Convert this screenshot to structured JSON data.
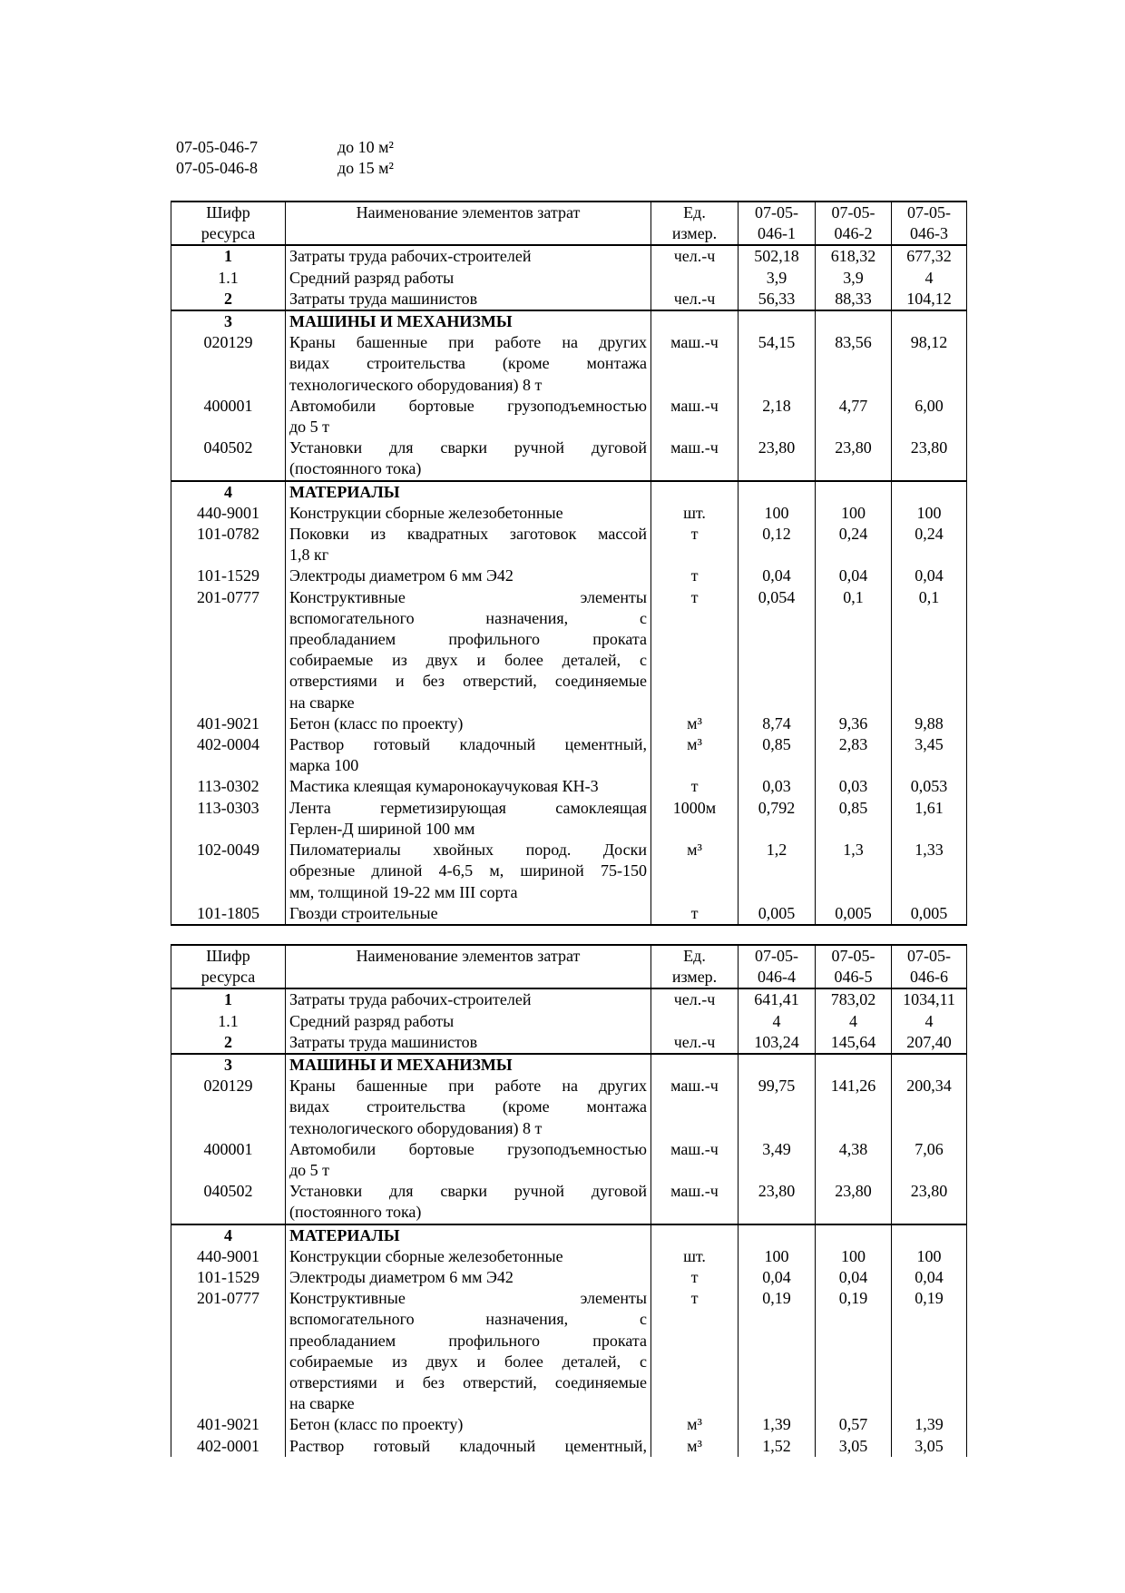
{
  "intro": [
    {
      "code": "07-05-046-7",
      "desc": "до 10 м²"
    },
    {
      "code": "07-05-046-8",
      "desc": "до 15 м²"
    }
  ],
  "tables": [
    {
      "header": {
        "code": [
          "Шифр",
          "ресурса"
        ],
        "name": "Наименование элементов затрат",
        "unit": [
          "Ед.",
          "измер."
        ],
        "cols": [
          [
            "07-05-",
            "046-1"
          ],
          [
            "07-05-",
            "046-2"
          ],
          [
            "07-05-",
            "046-3"
          ]
        ]
      },
      "groups": [
        [
          {
            "code": "1",
            "bold": true,
            "name": [
              "Затраты труда рабочих-строителей"
            ],
            "unit": "чел.-ч",
            "v": [
              "502,18",
              "618,32",
              "677,32"
            ]
          },
          {
            "code": "1.1",
            "name": [
              "Средний разряд работы"
            ],
            "unit": "",
            "v": [
              "3,9",
              "3,9",
              "4"
            ]
          },
          {
            "code": "2",
            "bold": true,
            "name": [
              "Затраты труда машинистов"
            ],
            "unit": "чел.-ч",
            "v": [
              "56,33",
              "88,33",
              "104,12"
            ]
          }
        ],
        [
          {
            "code": "3",
            "bold": true,
            "boldname": true,
            "name": [
              "МАШИНЫ И МЕХАНИЗМЫ"
            ],
            "unit": "",
            "v": [
              "",
              "",
              ""
            ]
          },
          {
            "code": "020129",
            "name": [
              "Краны башенные при работе на других",
              "видах строительства (кроме монтажа",
              "технологического оборудования) 8 т"
            ],
            "unit": "маш.-ч",
            "v": [
              "54,15",
              "83,56",
              "98,12"
            ]
          },
          {
            "code": "400001",
            "name": [
              "Автомобили бортовые грузоподъемностью",
              "до 5 т"
            ],
            "unit": "маш.-ч",
            "v": [
              "2,18",
              "4,77",
              "6,00"
            ]
          },
          {
            "code": "040502",
            "name": [
              "Установки для сварки ручной дуговой",
              "(постоянного тока)"
            ],
            "unit": "маш.-ч",
            "v": [
              "23,80",
              "23,80",
              "23,80"
            ]
          }
        ],
        [
          {
            "code": "4",
            "bold": true,
            "boldname": true,
            "name": [
              "МАТЕРИАЛЫ"
            ],
            "unit": "",
            "v": [
              "",
              "",
              ""
            ]
          },
          {
            "code": "440-9001",
            "name": [
              "Конструкции сборные железобетонные"
            ],
            "unit": "шт.",
            "v": [
              "100",
              "100",
              "100"
            ]
          },
          {
            "code": "101-0782",
            "name": [
              "Поковки из квадратных заготовок массой",
              "1,8 кг"
            ],
            "unit": "т",
            "v": [
              "0,12",
              "0,24",
              "0,24"
            ]
          },
          {
            "code": "101-1529",
            "name": [
              "Электроды диаметром 6 мм Э42"
            ],
            "unit": "т",
            "v": [
              "0,04",
              "0,04",
              "0,04"
            ]
          },
          {
            "code": "201-0777",
            "name": [
              "Конструктивные элементы",
              "вспомогательного назначения, с",
              "преобладанием профильного проката",
              "собираемые из двух и более деталей, с",
              "отверстиями и без отверстий, соединяемые",
              "на сварке"
            ],
            "unit": "т",
            "v": [
              "0,054",
              "0,1",
              "0,1"
            ]
          },
          {
            "code": "401-9021",
            "name": [
              "Бетон (класс по проекту)"
            ],
            "unit": "м³",
            "v": [
              "8,74",
              "9,36",
              "9,88"
            ]
          },
          {
            "code": "402-0004",
            "name": [
              "Раствор готовый кладочный цементный,",
              "марка 100"
            ],
            "unit": "м³",
            "v": [
              "0,85",
              "2,83",
              "3,45"
            ]
          },
          {
            "code": "113-0302",
            "name": [
              "Мастика клеящая кумаронокаучуковая КН-3"
            ],
            "unit": "т",
            "v": [
              "0,03",
              "0,03",
              "0,053"
            ]
          },
          {
            "code": "113-0303",
            "name": [
              "Лента герметизирующая самоклеящая",
              "Герлен-Д шириной 100 мм"
            ],
            "unit": "1000м",
            "v": [
              "0,792",
              "0,85",
              "1,61"
            ]
          },
          {
            "code": "102-0049",
            "name": [
              "Пиломатериалы хвойных пород. Доски",
              "обрезные длиной 4-6,5 м, шириной 75-150",
              "мм, толщиной 19-22 мм III сорта"
            ],
            "unit": "м³",
            "v": [
              "1,2",
              "1,3",
              "1,33"
            ]
          },
          {
            "code": "101-1805",
            "name": [
              "Гвозди строительные"
            ],
            "unit": "т",
            "v": [
              "0,005",
              "0,005",
              "0,005"
            ]
          }
        ]
      ]
    },
    {
      "header": {
        "code": [
          "Шифр",
          "ресурса"
        ],
        "name": "Наименование элементов затрат",
        "unit": [
          "Ед.",
          "измер."
        ],
        "cols": [
          [
            "07-05-",
            "046-4"
          ],
          [
            "07-05-",
            "046-5"
          ],
          [
            "07-05-",
            "046-6"
          ]
        ]
      },
      "groups": [
        [
          {
            "code": "1",
            "bold": true,
            "name": [
              "Затраты труда рабочих-строителей"
            ],
            "unit": "чел.-ч",
            "v": [
              "641,41",
              "783,02",
              "1034,11"
            ]
          },
          {
            "code": "1.1",
            "name": [
              "Средний разряд работы"
            ],
            "unit": "",
            "v": [
              "4",
              "4",
              "4"
            ]
          },
          {
            "code": "2",
            "bold": true,
            "name": [
              "Затраты труда машинистов"
            ],
            "unit": "чел.-ч",
            "v": [
              "103,24",
              "145,64",
              "207,40"
            ]
          }
        ],
        [
          {
            "code": "3",
            "bold": true,
            "boldname": true,
            "name": [
              "МАШИНЫ И МЕХАНИЗМЫ"
            ],
            "unit": "",
            "v": [
              "",
              "",
              ""
            ]
          },
          {
            "code": "020129",
            "name": [
              "Краны башенные при работе на других",
              "видах строительства (кроме монтажа",
              "технологического оборудования) 8 т"
            ],
            "unit": "маш.-ч",
            "v": [
              "99,75",
              "141,26",
              "200,34"
            ]
          },
          {
            "code": "400001",
            "name": [
              "Автомобили бортовые грузоподъемностью",
              "до 5 т"
            ],
            "unit": "маш.-ч",
            "v": [
              "3,49",
              "4,38",
              "7,06"
            ]
          },
          {
            "code": "040502",
            "name": [
              "Установки для сварки ручной дуговой",
              "(постоянного тока)"
            ],
            "unit": "маш.-ч",
            "v": [
              "23,80",
              "23,80",
              "23,80"
            ]
          }
        ],
        [
          {
            "code": "4",
            "bold": true,
            "boldname": true,
            "name": [
              "МАТЕРИАЛЫ"
            ],
            "unit": "",
            "v": [
              "",
              "",
              ""
            ]
          },
          {
            "code": "440-9001",
            "name": [
              "Конструкции сборные железобетонные"
            ],
            "unit": "шт.",
            "v": [
              "100",
              "100",
              "100"
            ]
          },
          {
            "code": "101-1529",
            "name": [
              "Электроды диаметром 6 мм Э42"
            ],
            "unit": "т",
            "v": [
              "0,04",
              "0,04",
              "0,04"
            ]
          },
          {
            "code": "201-0777",
            "name": [
              "Конструктивные элементы",
              "вспомогательного назначения, с",
              "преобладанием профильного проката",
              "собираемые из двух и более деталей, с",
              "отверстиями и без отверстий, соединяемые",
              "на сварке"
            ],
            "unit": "т",
            "v": [
              "0,19",
              "0,19",
              "0,19"
            ]
          },
          {
            "code": "401-9021",
            "name": [
              "Бетон (класс по проекту)"
            ],
            "unit": "м³",
            "v": [
              "1,39",
              "0,57",
              "1,39"
            ]
          },
          {
            "code": "402-0001",
            "name": [
              "Раствор готовый кладочный цементный,"
            ],
            "unit": "м³",
            "v": [
              "1,52",
              "3,05",
              "3,05"
            ],
            "cut": true
          }
        ]
      ]
    }
  ]
}
